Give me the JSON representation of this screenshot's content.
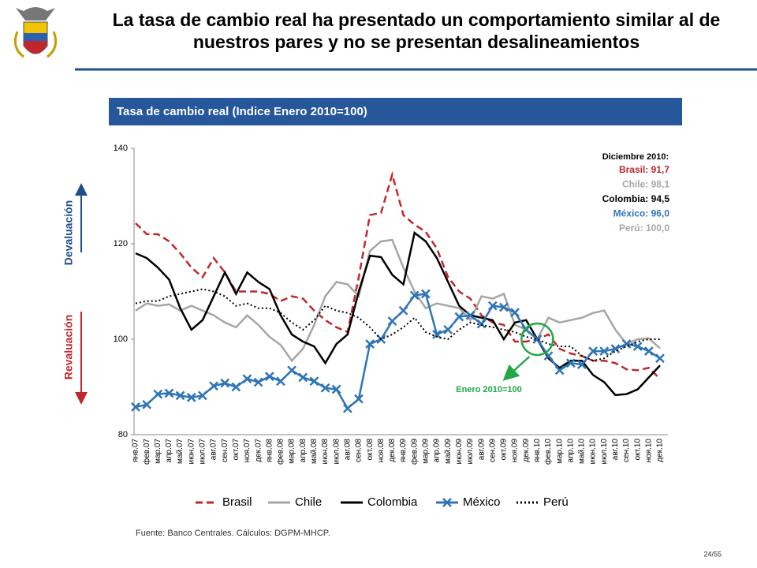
{
  "slide": {
    "title_line1": "La tasa de cambio real ha presentado un comportamiento similar al de",
    "title_line2": "nuestros pares y no se presentan desalineamientos",
    "page": "24/55"
  },
  "chart_data": {
    "type": "line",
    "subtitle": "Tasa de cambio real (Indice Enero 2010=100)",
    "source": "Fuente: Banco Centrales. Cálculos: DGPM-MHCP.",
    "categories": [
      "янв.07",
      "фев.07",
      "мар.07",
      "апр.07",
      "май.07",
      "июн.07",
      "июл.07",
      "авг.07",
      "сен.07",
      "окт.07",
      "ноя.07",
      "дек.07",
      "янв.08",
      "фев.08",
      "мар.08",
      "апр.08",
      "май.08",
      "июн.08",
      "июл.08",
      "авг.08",
      "сен.08",
      "окт.08",
      "ноя.08",
      "дек.08",
      "янв.09",
      "фев.09",
      "мар.09",
      "апр.09",
      "май.09",
      "июн.09",
      "июл.09",
      "авг.09",
      "сен.09",
      "окт.09",
      "ноя.09",
      "дек.09",
      "янв.10",
      "фев.10",
      "мар.10",
      "апр.10",
      "май.10",
      "июн.10",
      "июл.10",
      "авг.10",
      "сен.10",
      "окт.10",
      "ноя.10",
      "дек.10"
    ],
    "ylim": [
      80,
      140
    ],
    "yticks": [
      80,
      100,
      120,
      140
    ],
    "series": [
      {
        "name": "Brasil",
        "color": "#c0272d",
        "dash": "dashed",
        "values": [
          124.3,
          122,
          122,
          120.5,
          118,
          115,
          113,
          117,
          114,
          110,
          110,
          110,
          109.5,
          108,
          109,
          108.5,
          106,
          104,
          102.5,
          101.5,
          113,
          126,
          126.5,
          134.5,
          126,
          124,
          122.5,
          119,
          113,
          110,
          108.5,
          105,
          103.5,
          103,
          99.5,
          99.5,
          100,
          101,
          98,
          97,
          96.5,
          95.5,
          95.5,
          95,
          93.7,
          93.5,
          94,
          91.7
        ]
      },
      {
        "name": "Chile",
        "color": "#a6a6a6",
        "dash": "solid",
        "values": [
          106,
          107.5,
          107,
          107.3,
          106,
          107,
          106,
          105,
          103.5,
          102.5,
          105,
          103,
          100.5,
          98.8,
          95.5,
          98,
          103,
          109,
          112,
          111.5,
          109,
          118.5,
          120.5,
          120.8,
          115,
          110,
          106.5,
          107.5,
          107,
          106.5,
          104,
          109,
          108.5,
          109.5,
          103,
          102,
          100,
          104.5,
          103.5,
          104,
          104.5,
          105.5,
          106,
          102,
          99,
          100,
          100.2,
          98.1
        ]
      },
      {
        "name": "Colombia",
        "color": "#000000",
        "dash": "solid",
        "values": [
          118,
          117,
          115,
          112.5,
          106.5,
          102,
          104,
          109,
          114,
          109.5,
          114,
          112,
          110.5,
          105,
          101,
          99.5,
          98.5,
          95,
          99,
          101,
          110,
          117.5,
          117.2,
          113.5,
          111.5,
          122.3,
          120.5,
          117,
          112,
          107,
          105,
          104.5,
          104,
          100,
          103.5,
          104,
          100,
          96,
          94,
          95.5,
          95.5,
          92.5,
          91,
          88.3,
          88.5,
          89.5,
          92,
          94.5
        ]
      },
      {
        "name": "México",
        "color": "#2e75b6",
        "dash": "solid",
        "marker": "x",
        "values": [
          85.8,
          86.3,
          88.5,
          88.7,
          88.2,
          87.8,
          88.2,
          90.2,
          90.8,
          90,
          91.7,
          91,
          92.2,
          91.2,
          93.5,
          92,
          91.2,
          89.8,
          89.5,
          85.5,
          87.5,
          99,
          100,
          103.8,
          106,
          109.2,
          109.5,
          101,
          102,
          104.7,
          105,
          103.2,
          107,
          106.7,
          105.6,
          102,
          100,
          96.5,
          93.5,
          95,
          94.7,
          97.5,
          97.5,
          98,
          99,
          98.5,
          97.5,
          96.0
        ]
      },
      {
        "name": "Perú",
        "color": "#000000",
        "dash": "dotted",
        "values": [
          107.5,
          108,
          108,
          109,
          109.5,
          110,
          110.5,
          110,
          109,
          107,
          107.5,
          106.5,
          106.5,
          105.5,
          103.5,
          102,
          104,
          107,
          106,
          105.5,
          104.5,
          102.5,
          100,
          101,
          102.5,
          104.5,
          101.5,
          100.5,
          100,
          102,
          103.5,
          103,
          102.5,
          102,
          101.5,
          100.5,
          100,
          99,
          98.5,
          98.5,
          96.5,
          95.5,
          96,
          97.5,
          98.5,
          99.5,
          100,
          100.0
        ]
      }
    ],
    "annotations": {
      "heading": "Diciembre 2010:",
      "lines": [
        {
          "text": "Brasil: 91,7",
          "color": "#c0272d"
        },
        {
          "text": "Chile: 98,1",
          "color": "#a6a6a6"
        },
        {
          "text": "Colombia: 94,5",
          "color": "#000000"
        },
        {
          "text": "México: 96,0",
          "color": "#2e75b6"
        },
        {
          "text": "Perú: 100,0",
          "color": "#a6a6a6"
        }
      ],
      "base": "Enero 2010=100",
      "up": "Devaluación",
      "down": "Revaluación"
    }
  }
}
